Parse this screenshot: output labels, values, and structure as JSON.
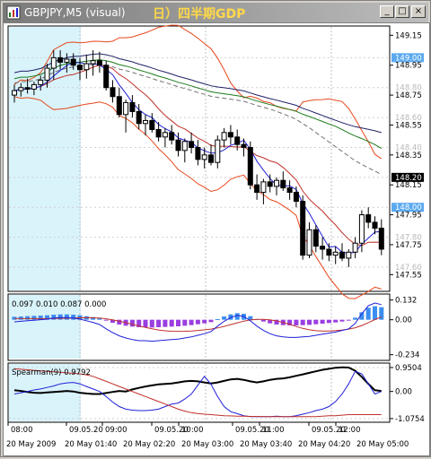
{
  "window": {
    "title": "GBPJPY,M5 (visual)",
    "title_jp": "日）四半期GDP",
    "buttons": {
      "minimize": "_",
      "maximize": "□",
      "close": "×"
    }
  },
  "colors": {
    "bg": "#ffffff",
    "highlight": "#d9f3fb",
    "grid": "#c0c0c0",
    "bollinger": "#e8481c",
    "ma_fast": "#1f1fd6",
    "ma_mid": "#c0302a",
    "ma_slow_green": "#1a7a1a",
    "ma_slow_navy": "#202068",
    "ma_dash": "#707070",
    "macd_pos": "#3b8ef0",
    "macd_neg": "#9a3ee0",
    "marker_blue": "#5aa9f0",
    "marker_dark": "#000000"
  },
  "chart_data": [
    {
      "type": "candlestick",
      "name": "main",
      "ylim": [
        147.45,
        149.2
      ],
      "y_ticks": [
        "149.15",
        "148.95",
        "148.75",
        "148.55",
        "148.35",
        "148.15",
        "147.95",
        "147.75",
        "147.55"
      ],
      "price_markers": [
        {
          "label": "149.00",
          "value": 149.0,
          "style": "blue"
        },
        {
          "label": "148.80",
          "value": 148.8,
          "style": "plain"
        },
        {
          "label": "148.60",
          "value": 148.6,
          "style": "plain"
        },
        {
          "label": "148.40",
          "value": 148.4,
          "style": "plain"
        },
        {
          "label": "148.20",
          "value": 148.2,
          "style": "dark"
        },
        {
          "label": "148.00",
          "value": 148.0,
          "style": "blue"
        },
        {
          "label": "147.80",
          "value": 147.8,
          "style": "plain"
        },
        {
          "label": "147.60",
          "value": 147.6,
          "style": "plain"
        }
      ],
      "ohlc": [
        [
          148.75,
          148.82,
          148.7,
          148.78
        ],
        [
          148.78,
          148.83,
          148.74,
          148.8
        ],
        [
          148.8,
          148.86,
          148.76,
          148.79
        ],
        [
          148.79,
          148.84,
          148.75,
          148.82
        ],
        [
          148.82,
          148.88,
          148.78,
          148.85
        ],
        [
          148.85,
          148.96,
          148.8,
          148.93
        ],
        [
          148.93,
          149.05,
          148.85,
          149.0
        ],
        [
          149.0,
          149.05,
          148.92,
          148.97
        ],
        [
          148.97,
          149.03,
          148.9,
          148.99
        ],
        [
          148.99,
          149.03,
          148.92,
          148.95
        ],
        [
          148.95,
          149.0,
          148.85,
          148.92
        ],
        [
          148.92,
          149.02,
          148.86,
          148.96
        ],
        [
          148.96,
          149.05,
          148.88,
          148.98
        ],
        [
          148.98,
          149.04,
          148.9,
          148.95
        ],
        [
          148.95,
          148.98,
          148.78,
          148.8
        ],
        [
          148.8,
          148.85,
          148.7,
          148.74
        ],
        [
          148.74,
          148.8,
          148.6,
          148.62
        ],
        [
          148.62,
          148.72,
          148.5,
          148.7
        ],
        [
          148.7,
          148.75,
          148.6,
          148.64
        ],
        [
          148.64,
          148.69,
          148.52,
          148.56
        ],
        [
          148.56,
          148.62,
          148.48,
          148.58
        ],
        [
          148.58,
          148.63,
          148.5,
          148.52
        ],
        [
          148.52,
          148.57,
          148.44,
          148.47
        ],
        [
          148.47,
          148.53,
          148.4,
          148.5
        ],
        [
          148.5,
          148.55,
          148.42,
          148.45
        ],
        [
          148.45,
          148.5,
          148.34,
          148.38
        ],
        [
          148.38,
          148.46,
          148.3,
          148.44
        ],
        [
          148.44,
          148.5,
          148.36,
          148.4
        ],
        [
          148.4,
          148.45,
          148.28,
          148.32
        ],
        [
          148.32,
          148.4,
          148.26,
          148.35
        ],
        [
          148.35,
          148.42,
          148.28,
          148.3
        ],
        [
          148.3,
          148.48,
          148.26,
          148.45
        ],
        [
          148.45,
          148.53,
          148.4,
          148.5
        ],
        [
          148.5,
          148.55,
          148.42,
          148.47
        ],
        [
          148.47,
          148.52,
          148.38,
          148.42
        ],
        [
          148.42,
          148.46,
          148.34,
          148.4
        ],
        [
          148.4,
          148.44,
          148.12,
          148.15
        ],
        [
          148.15,
          148.22,
          148.05,
          148.1
        ],
        [
          148.1,
          148.19,
          148.02,
          148.17
        ],
        [
          148.17,
          148.22,
          148.1,
          148.14
        ],
        [
          148.14,
          148.2,
          148.08,
          148.18
        ],
        [
          148.18,
          148.24,
          148.11,
          148.13
        ],
        [
          148.13,
          148.18,
          148.05,
          148.1
        ],
        [
          148.1,
          148.14,
          148.0,
          148.04
        ],
        [
          148.04,
          148.08,
          147.65,
          147.68
        ],
        [
          147.68,
          147.9,
          147.66,
          147.85
        ],
        [
          147.85,
          147.88,
          147.7,
          147.74
        ],
        [
          147.74,
          147.8,
          147.65,
          147.72
        ],
        [
          147.72,
          147.76,
          147.64,
          147.68
        ],
        [
          147.68,
          147.74,
          147.62,
          147.7
        ],
        [
          147.7,
          147.76,
          147.64,
          147.66
        ],
        [
          147.66,
          147.72,
          147.6,
          147.7
        ],
        [
          147.7,
          147.8,
          147.66,
          147.76
        ],
        [
          147.76,
          147.98,
          147.7,
          147.95
        ],
        [
          147.95,
          148.0,
          147.86,
          147.9
        ],
        [
          147.9,
          147.94,
          147.82,
          147.86
        ],
        [
          147.86,
          147.92,
          147.68,
          147.72
        ]
      ]
    },
    {
      "type": "bar",
      "name": "macd",
      "label": "0.097 0.010 0.087 0.000",
      "ylim": [
        -0.26,
        0.16
      ],
      "y_ticks": [
        "0.132",
        "0.00",
        "-0.234"
      ],
      "values": [
        0.02,
        0.022,
        0.024,
        0.026,
        0.028,
        0.03,
        0.034,
        0.036,
        0.036,
        0.034,
        0.03,
        0.024,
        0.018,
        0.01,
        -0.006,
        -0.02,
        -0.032,
        -0.04,
        -0.046,
        -0.05,
        -0.05,
        -0.052,
        -0.05,
        -0.048,
        -0.046,
        -0.044,
        -0.04,
        -0.036,
        -0.03,
        -0.024,
        -0.016,
        0.004,
        0.022,
        0.036,
        0.044,
        0.04,
        0.024,
        0.004,
        -0.012,
        -0.024,
        -0.032,
        -0.036,
        -0.038,
        -0.038,
        -0.036,
        -0.034,
        -0.03,
        -0.026,
        -0.022,
        -0.018,
        -0.012,
        -0.006,
        0.014,
        0.05,
        0.08,
        0.09,
        0.084
      ]
    },
    {
      "type": "line",
      "name": "spearman",
      "label": "Spearman(9) 0.9792",
      "ylim": [
        -1.15,
        1.02
      ],
      "y_ticks": [
        "0.9504",
        "0.00",
        "-1.0754"
      ],
      "series": [
        {
          "values": [
            0.05,
            0.02,
            -0.02,
            -0.05,
            -0.06,
            -0.04,
            -0.02,
            0.0,
            0.02,
            0.0,
            -0.05,
            -0.08,
            -0.1,
            -0.1,
            -0.06,
            -0.02,
            0.02,
            0.0,
            0.08,
            0.14,
            0.2,
            0.24,
            0.28,
            0.3,
            0.32,
            0.36,
            0.4,
            0.42,
            0.4,
            0.36,
            0.32,
            0.36,
            0.42,
            0.48,
            0.5,
            0.46,
            0.4,
            0.36,
            0.4,
            0.46,
            0.5,
            0.52,
            0.56,
            0.62,
            0.68,
            0.74,
            0.8,
            0.86,
            0.9,
            0.94,
            0.96,
            0.95,
            0.82,
            0.58,
            0.3,
            0.05,
            0.02
          ]
        },
        {
          "values": [
            -0.1,
            -0.05,
            0.0,
            0.06,
            0.1,
            0.16,
            0.22,
            0.3,
            0.34,
            0.36,
            0.3,
            0.2,
            0.1,
            0.0,
            -0.2,
            -0.42,
            -0.6,
            -0.7,
            -0.74,
            -0.76,
            -0.76,
            -0.74,
            -0.7,
            -0.6,
            -0.5,
            -0.46,
            -0.3,
            -0.1,
            0.25,
            0.6,
            0.28,
            -0.2,
            -0.6,
            -0.8,
            -0.88,
            -0.96,
            -1.0,
            -1.0,
            -1.0,
            -1.0,
            -0.98,
            -1.0,
            -1.0,
            -0.96,
            -0.9,
            -0.84,
            -0.76,
            -0.7,
            -0.6,
            -0.4,
            -0.1,
            0.3,
            0.8,
            0.7,
            0.3,
            -0.1,
            0.0
          ]
        },
        {
          "values": [
            0.9,
            0.88,
            0.86,
            0.84,
            0.82,
            0.8,
            0.78,
            0.76,
            0.74,
            0.72,
            0.7,
            0.66,
            0.6,
            0.5,
            0.4,
            0.3,
            0.2,
            0.1,
            0.0,
            -0.1,
            -0.2,
            -0.3,
            -0.4,
            -0.5,
            -0.6,
            -0.7,
            -0.78,
            -0.84,
            -0.88,
            -0.9,
            -0.92,
            -0.94,
            -0.96,
            -0.97,
            -0.98,
            -0.98,
            -0.99,
            -0.99,
            -1.0,
            -1.0,
            -1.0,
            -1.0,
            -1.0,
            -1.0,
            -1.0,
            -1.0,
            -1.0,
            -0.98,
            -0.96,
            -0.96,
            -0.94,
            -0.92,
            -0.92,
            -0.92,
            -0.92,
            -0.92,
            -0.92
          ]
        }
      ]
    }
  ],
  "time_axis": {
    "row1": [
      "08:00",
      "09.05.20",
      "09:00",
      "09.05.20",
      "10:00",
      "09.05.20",
      "11:00",
      "09.05.20",
      "12:00"
    ],
    "row2": [
      "20 May 2009",
      "20 May 01:40",
      "20 May 02:20",
      "20 May 03:00",
      "20 May 03:40",
      "20 May 04:20",
      "20 May 05:00"
    ]
  }
}
